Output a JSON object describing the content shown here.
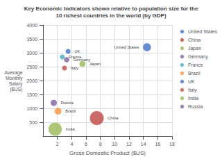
{
  "chart_data": {
    "type": "scatter",
    "title": "Key Economic Indicators shown relative to population size for the\n10 richest countries in the world (by GDP)",
    "xlabel": "Gross Domestic Product ($US)",
    "ylabel": "Average\nMonthly\nSalary\n($US)",
    "xlim": [
      0,
      18
    ],
    "ylim": [
      0,
      4000
    ],
    "xticks": [
      2,
      4,
      6,
      8,
      10,
      12,
      14,
      16,
      18
    ],
    "yticks": [
      500,
      1000,
      1500,
      2000,
      2500,
      3000,
      3500,
      4000
    ],
    "grid": true,
    "legend": "right",
    "series": [
      {
        "name": "United States",
        "color": "#4472C4",
        "x": [
          14.5
        ],
        "values": [
          3200
        ],
        "size": [
          310
        ]
      },
      {
        "name": "China",
        "color": "#BE4B48",
        "x": [
          7.5
        ],
        "values": [
          650
        ],
        "size": [
          1340
        ]
      },
      {
        "name": "Japan",
        "color": "#9BBB59",
        "x": [
          5.5
        ],
        "values": [
          2600
        ],
        "size": [
          128
        ]
      },
      {
        "name": "Germany",
        "color": "#8064A2",
        "x": [
          3.3
        ],
        "values": [
          2750
        ],
        "size": [
          82
        ]
      },
      {
        "name": "France",
        "color": "#4BACC6",
        "x": [
          2.7
        ],
        "values": [
          2850
        ],
        "size": [
          63
        ]
      },
      {
        "name": "Brazil",
        "color": "#F79646",
        "x": [
          2.1
        ],
        "values": [
          900
        ],
        "size": [
          195
        ]
      },
      {
        "name": "UK",
        "color": "#4472C4",
        "x": [
          3.5
        ],
        "values": [
          3050
        ],
        "size": [
          62
        ]
      },
      {
        "name": "Italy",
        "color": "#C0504D",
        "x": [
          3.0
        ],
        "values": [
          2450
        ],
        "size": [
          60
        ]
      },
      {
        "name": "India",
        "color": "#9BBB59",
        "x": [
          1.7
        ],
        "values": [
          250
        ],
        "size": [
          1210
        ]
      },
      {
        "name": "Russia",
        "color": "#8064A2",
        "x": [
          1.5
        ],
        "values": [
          1200
        ],
        "size": [
          143
        ]
      }
    ]
  }
}
